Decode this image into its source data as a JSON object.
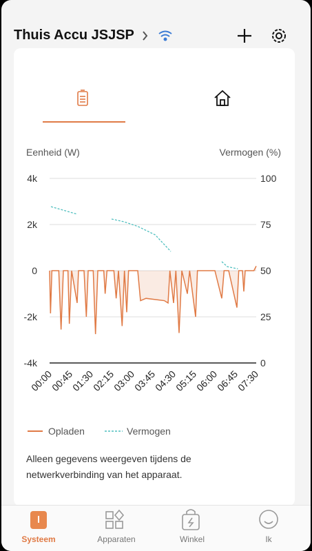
{
  "header": {
    "title": "Thuis Accu JSJSP"
  },
  "chart_data": {
    "type": "line",
    "ylabel": "Eenheid (W)",
    "y2label": "Vermogen (%)",
    "x": [
      0,
      2,
      5,
      20,
      25,
      30,
      40,
      43,
      48,
      60,
      63,
      75,
      80,
      84,
      95,
      100,
      105,
      118,
      121,
      125,
      140,
      145,
      150,
      158,
      163,
      168,
      172,
      192,
      198,
      210,
      230,
      250,
      258,
      262,
      270,
      275,
      282,
      288,
      300,
      305,
      318,
      322,
      360,
      375,
      380,
      390,
      408,
      412,
      420,
      423,
      426,
      445,
      450
    ],
    "series": [
      {
        "name": "Opladen",
        "color": "#e07a45",
        "values": [
          0,
          -1850,
          0,
          0,
          -2550,
          0,
          0,
          -2300,
          0,
          -1400,
          0,
          0,
          -2000,
          0,
          0,
          -2750,
          0,
          0,
          -1000,
          0,
          0,
          -1200,
          0,
          -2400,
          0,
          -1800,
          0,
          0,
          -1300,
          -1200,
          -1250,
          -1300,
          -1400,
          0,
          -1400,
          0,
          -2700,
          0,
          -1000,
          0,
          -2000,
          0,
          0,
          -1200,
          0,
          0,
          -1600,
          0,
          0,
          -900,
          0,
          0,
          200
        ]
      },
      {
        "name": "Vermogen",
        "color": "#4fbfbf",
        "axis": "y2",
        "dashed": true,
        "x": [
          3,
          60,
          100,
          135,
          162,
          192,
          230,
          264,
          300,
          375,
          387,
          410
        ],
        "values": [
          84.7,
          80.6,
          null,
          78,
          76.5,
          74,
          69.4,
          60.4,
          null,
          54.9,
          52.2,
          51
        ]
      }
    ],
    "xlim": [
      0,
      450
    ],
    "xticks": [
      {
        "value": 0,
        "label": "00:00"
      },
      {
        "value": 45,
        "label": "00:45"
      },
      {
        "value": 90,
        "label": "01:30"
      },
      {
        "value": 135,
        "label": "02:15"
      },
      {
        "value": 180,
        "label": "03:00"
      },
      {
        "value": 225,
        "label": "03:45"
      },
      {
        "value": 270,
        "label": "04:30"
      },
      {
        "value": 315,
        "label": "05:15"
      },
      {
        "value": 360,
        "label": "06:00"
      },
      {
        "value": 405,
        "label": "06:45"
      },
      {
        "value": 450,
        "label": "07:30"
      }
    ],
    "ylim": [
      -4000,
      4000
    ],
    "yticks": [
      {
        "value": 4000,
        "label": "4k"
      },
      {
        "value": 2000,
        "label": "2k"
      },
      0,
      {
        "value": -2000,
        "label": "-2k"
      },
      {
        "value": -4000,
        "label": "-4k"
      }
    ],
    "y2lim": [
      0,
      100
    ],
    "y2ticks": [
      100,
      75,
      50,
      25,
      0
    ],
    "grid": true
  },
  "note": "Alleen gegevens weergeven tijdens de netwerkverbinding van het apparaat.",
  "nav": [
    {
      "label": "Systeem",
      "active": true
    },
    {
      "label": "Apparaten"
    },
    {
      "label": "Winkel"
    },
    {
      "label": "Ik"
    }
  ]
}
